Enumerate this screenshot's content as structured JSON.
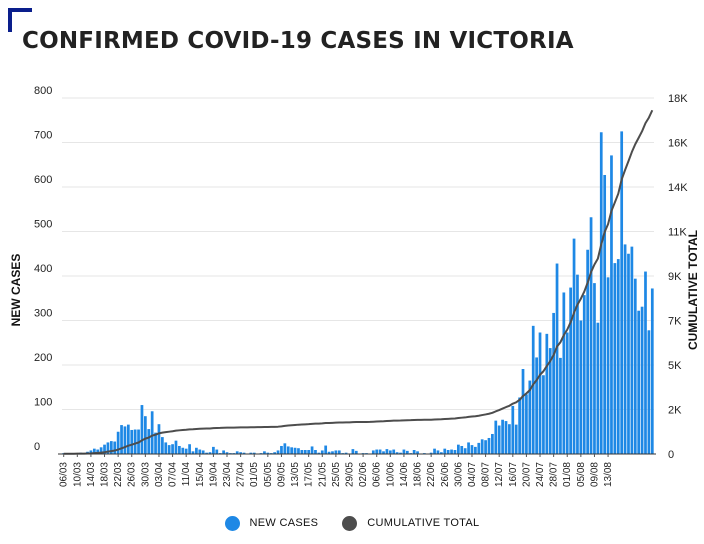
{
  "header": {
    "title": "CONFIRMED COVID-19 CASES IN VICTORIA"
  },
  "colors": {
    "bar": "#1E88E5",
    "line": "#4D4D4D",
    "accent": "#0A1E8C"
  },
  "legend": {
    "new_cases": "NEW CASES",
    "cumulative": "CUMULATIVE TOTAL"
  },
  "chart_data": {
    "type": "bar",
    "title": "CONFIRMED COVID-19 CASES IN VICTORIA",
    "xlabel": "",
    "ylabel": "NEW CASES",
    "y2label": "CUMULATIVE TOTAL",
    "ylim": [
      0,
      800
    ],
    "y2lim": [
      0,
      18000
    ],
    "y_ticks": [
      "0",
      "100",
      "200",
      "300",
      "400",
      "500",
      "600",
      "700",
      "800"
    ],
    "y2_ticks": [
      "0",
      "2K",
      "5K",
      "7K",
      "9K",
      "11K",
      "14K",
      "16K",
      "18K"
    ],
    "grid": true,
    "legend_position": "bottom",
    "x_tick_labels": [
      "06/03",
      "10/03",
      "14/03",
      "18/03",
      "22/03",
      "26/03",
      "30/03",
      "03/04",
      "07/04",
      "11/04",
      "15/04",
      "19/04",
      "23/04",
      "27/04",
      "01/05",
      "05/05",
      "09/05",
      "13/05",
      "17/05",
      "21/05",
      "25/05",
      "29/05",
      "02/06",
      "06/06",
      "10/06",
      "14/06",
      "18/06",
      "22/06",
      "26/06",
      "30/06",
      "04/07",
      "08/07",
      "12/07",
      "16/07",
      "20/07",
      "24/07",
      "28/07",
      "01/08",
      "05/08",
      "09/08",
      "13/08"
    ],
    "start_date": "06/03",
    "series": [
      {
        "name": "NEW CASES",
        "type": "bar",
        "values": [
          2,
          1,
          1,
          1,
          2,
          3,
          2,
          5,
          8,
          12,
          10,
          15,
          21,
          26,
          29,
          28,
          50,
          65,
          62,
          66,
          54,
          55,
          55,
          110,
          85,
          56,
          96,
          48,
          67,
          38,
          26,
          20,
          22,
          30,
          18,
          14,
          12,
          22,
          6,
          14,
          10,
          8,
          3,
          4,
          16,
          10,
          2,
          8,
          4,
          2,
          2,
          6,
          4,
          3,
          1,
          3,
          3,
          1,
          2,
          6,
          3,
          2,
          4,
          8,
          18,
          24,
          17,
          15,
          14,
          13,
          9,
          9,
          9,
          17,
          9,
          3,
          8,
          19,
          5,
          6,
          8,
          8,
          2,
          3,
          1,
          11,
          7,
          1,
          2,
          2,
          1,
          8,
          10,
          10,
          6,
          11,
          8,
          10,
          4,
          3,
          10,
          7,
          2,
          9,
          6,
          1,
          2,
          1,
          3,
          12,
          8,
          4,
          12,
          9,
          10,
          9,
          21,
          18,
          13,
          26,
          20,
          16,
          25,
          33,
          31,
          36,
          45,
          75,
          64,
          77,
          74,
          67,
          108,
          66,
          127,
          191,
          134,
          165,
          288,
          217,
          273,
          177,
          270,
          238,
          317,
          428,
          216,
          363,
          273,
          374,
          484,
          403,
          300,
          357,
          459,
          532,
          384,
          295,
          723,
          627,
          397,
          671,
          429,
          438,
          725,
          471,
          450,
          466,
          394,
          322,
          331,
          410,
          278,
          372
        ],
        "labels_present": false
      },
      {
        "name": "CUMULATIVE TOTAL",
        "type": "line",
        "axis": "right",
        "values": [
          11,
          12,
          13,
          14,
          16,
          19,
          21,
          26,
          34,
          46,
          56,
          71,
          92,
          118,
          147,
          175,
          225,
          290,
          352,
          418,
          472,
          527,
          582,
          692,
          777,
          833,
          929,
          977,
          1044,
          1082,
          1108,
          1128,
          1150,
          1180,
          1198,
          1212,
          1224,
          1246,
          1252,
          1266,
          1276,
          1284,
          1287,
          1291,
          1307,
          1317,
          1319,
          1327,
          1331,
          1333,
          1335,
          1341,
          1345,
          1348,
          1349,
          1352,
          1355,
          1356,
          1358,
          1364,
          1367,
          1369,
          1373,
          1381,
          1399,
          1423,
          1440,
          1455,
          1469,
          1482,
          1491,
          1500,
          1509,
          1526,
          1535,
          1538,
          1546,
          1565,
          1570,
          1576,
          1584,
          1592,
          1594,
          1597,
          1598,
          1609,
          1616,
          1617,
          1619,
          1621,
          1622,
          1630,
          1640,
          1650,
          1656,
          1667,
          1675,
          1685,
          1689,
          1692,
          1702,
          1709,
          1711,
          1720,
          1726,
          1727,
          1729,
          1730,
          1733,
          1745,
          1753,
          1757,
          1769,
          1778,
          1788,
          1797,
          1818,
          1836,
          1849,
          1875,
          1895,
          1911,
          1936,
          1969,
          2000,
          2036,
          2081,
          2156,
          2220,
          2297,
          2371,
          2438,
          2546,
          2612,
          2739,
          2930,
          3064,
          3229,
          3517,
          3734,
          4007,
          4184,
          4454,
          4692,
          5009,
          5437,
          5653,
          6016,
          6289,
          6663,
          7147,
          7550,
          7850,
          8207,
          8666,
          9198,
          9582,
          9877,
          10600,
          11227,
          11624,
          12295,
          12724,
          13162,
          13887,
          14358,
          14808,
          15274,
          15668,
          15990,
          16321,
          16731,
          17009,
          17381
        ]
      }
    ]
  }
}
